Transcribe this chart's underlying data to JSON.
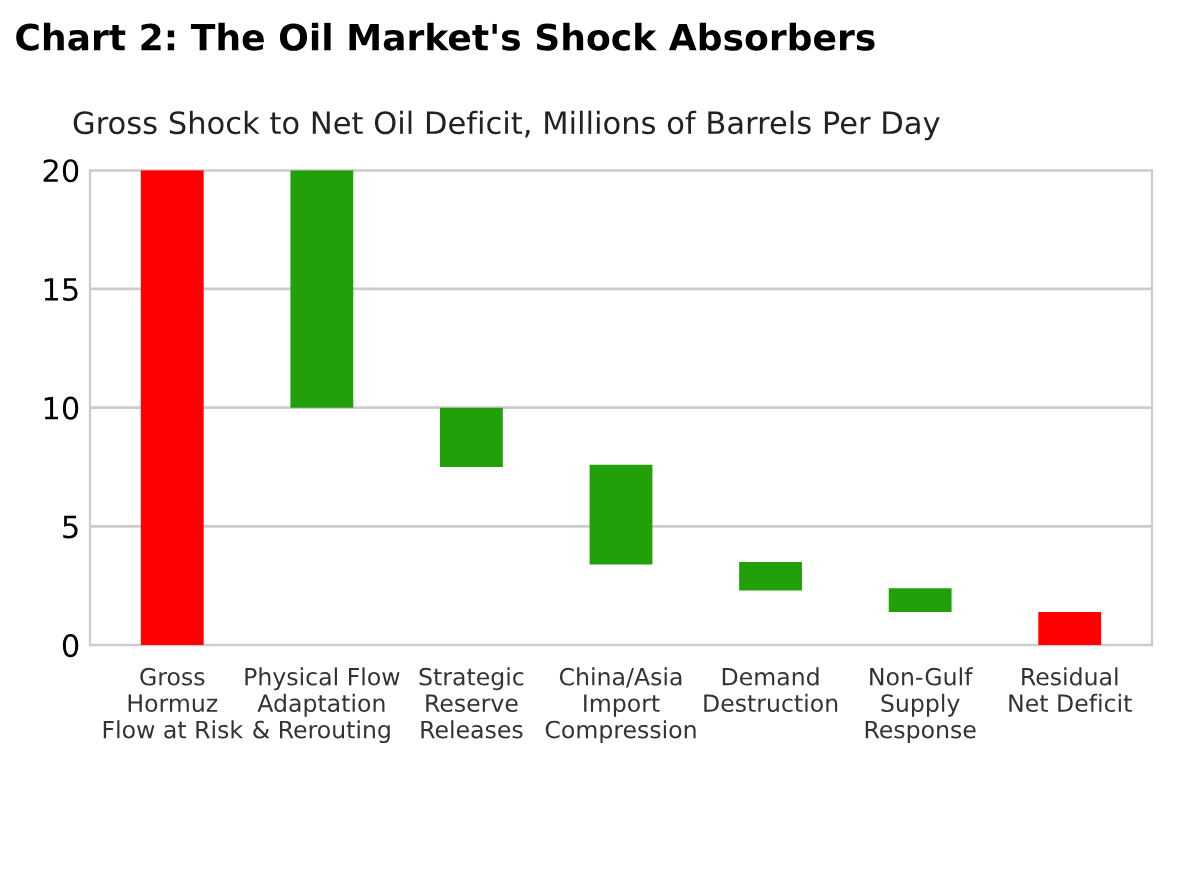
{
  "chart_data": {
    "type": "bar",
    "title": "Chart 2: The Oil Market's Shock Absorbers",
    "subtitle": "Gross Shock to Net Oil Deficit, Millions of Barrels Per Day",
    "categories": [
      "Gross\nHormuz\nFlow at Risk",
      "Physical Flow\nAdaptation\n& Rerouting",
      "Strategic\nReserve\nReleases",
      "China/Asia\nImport\nCompression",
      "Demand\nDestruction",
      "Non-Gulf\nSupply\nResponse",
      "Residual\nNet Deficit"
    ],
    "values": [
      20,
      10,
      2.5,
      4.2,
      1.2,
      1.0,
      1.4
    ],
    "base": [
      0,
      10,
      7.5,
      3.4,
      2.3,
      1.4,
      0
    ],
    "colors": [
      "#ff0000",
      "#22a00a",
      "#22a00a",
      "#22a00a",
      "#22a00a",
      "#22a00a",
      "#ff0000"
    ],
    "ylim": [
      0,
      20
    ],
    "yticks": [
      0,
      5,
      10,
      15,
      20
    ],
    "grid": "y"
  }
}
